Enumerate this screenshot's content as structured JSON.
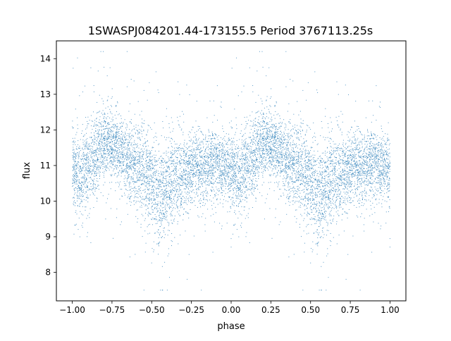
{
  "chart_data": {
    "type": "scatter",
    "title": "1SWASPJ084201.44-173155.5 Period 3767113.25s",
    "xlabel": "phase",
    "ylabel": "flux",
    "xlim": [
      -1.1,
      1.1
    ],
    "ylim": [
      7.2,
      14.5
    ],
    "xticks": [
      -1.0,
      -0.75,
      -0.5,
      -0.25,
      0.0,
      0.25,
      0.5,
      0.75,
      1.0
    ],
    "xtick_labels": [
      "−1.00",
      "−0.75",
      "−0.50",
      "−0.25",
      "0.00",
      "0.25",
      "0.50",
      "0.75",
      "1.00"
    ],
    "yticks": [
      8,
      9,
      10,
      11,
      12,
      13,
      14
    ],
    "ytick_labels": [
      "8",
      "9",
      "10",
      "11",
      "12",
      "13",
      "14"
    ],
    "grid": false,
    "series": [
      {
        "color": "#1f77b4",
        "phase_profile": {
          "phase": [
            0.0,
            0.05,
            0.1,
            0.15,
            0.2,
            0.25,
            0.3,
            0.35,
            0.4,
            0.45,
            0.5,
            0.55,
            0.6,
            0.65,
            0.7,
            0.75,
            0.8,
            0.85,
            0.9,
            0.95,
            1.0
          ],
          "flux_center": [
            10.9,
            10.7,
            11.0,
            11.3,
            11.7,
            11.5,
            11.4,
            11.2,
            11.0,
            10.8,
            10.6,
            10.2,
            10.4,
            10.6,
            10.8,
            10.9,
            10.9,
            11.0,
            11.1,
            11.0,
            10.9
          ],
          "flux_spread": [
            0.5,
            0.6,
            0.6,
            0.6,
            0.5,
            0.5,
            0.5,
            0.5,
            0.6,
            0.6,
            0.6,
            0.7,
            0.7,
            0.6,
            0.6,
            0.5,
            0.5,
            0.5,
            0.5,
            0.5,
            0.5
          ]
        },
        "flux_range": [
          7.5,
          14.2
        ],
        "n_points": 9000
      }
    ]
  }
}
